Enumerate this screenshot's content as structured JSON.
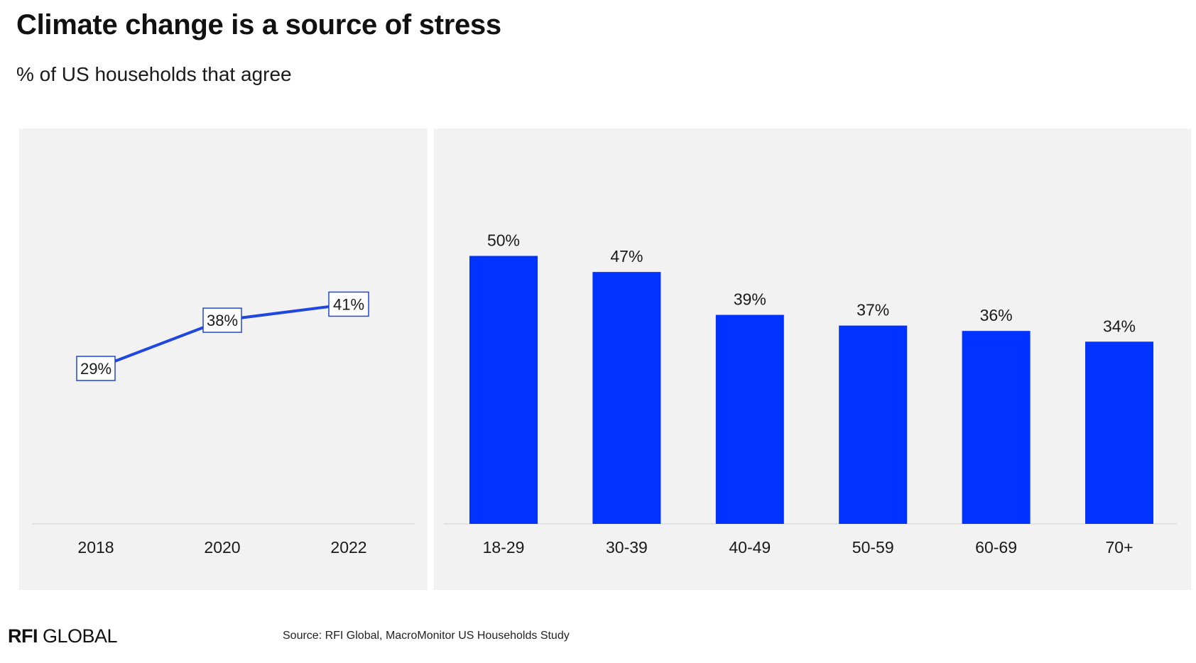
{
  "header": {
    "title": "Climate change is a source of stress",
    "subtitle": "% of US households that agree"
  },
  "footer": {
    "logo_bold": "RFI",
    "logo_rest": " GLOBAL",
    "source": "Source: RFI Global, MacroMonitor US Households Study"
  },
  "colors": {
    "accent": "#0033ff",
    "line": "#1f47e0",
    "panel_bg": "#f2f2f2"
  },
  "chart_data": [
    {
      "type": "line",
      "x": [
        "2018",
        "2020",
        "2022"
      ],
      "values": [
        29,
        38,
        41
      ],
      "data_labels": [
        "29%",
        "38%",
        "41%"
      ],
      "ylim": [
        0,
        70
      ],
      "grid": false,
      "legend": "none"
    },
    {
      "type": "bar",
      "categories": [
        "18-29",
        "30-39",
        "40-49",
        "50-59",
        "60-69",
        "70+"
      ],
      "values": [
        50,
        47,
        39,
        37,
        36,
        34
      ],
      "data_labels": [
        "50%",
        "47%",
        "39%",
        "37%",
        "36%",
        "34%"
      ],
      "ylim": [
        0,
        70
      ],
      "grid": false,
      "legend": "none"
    }
  ]
}
